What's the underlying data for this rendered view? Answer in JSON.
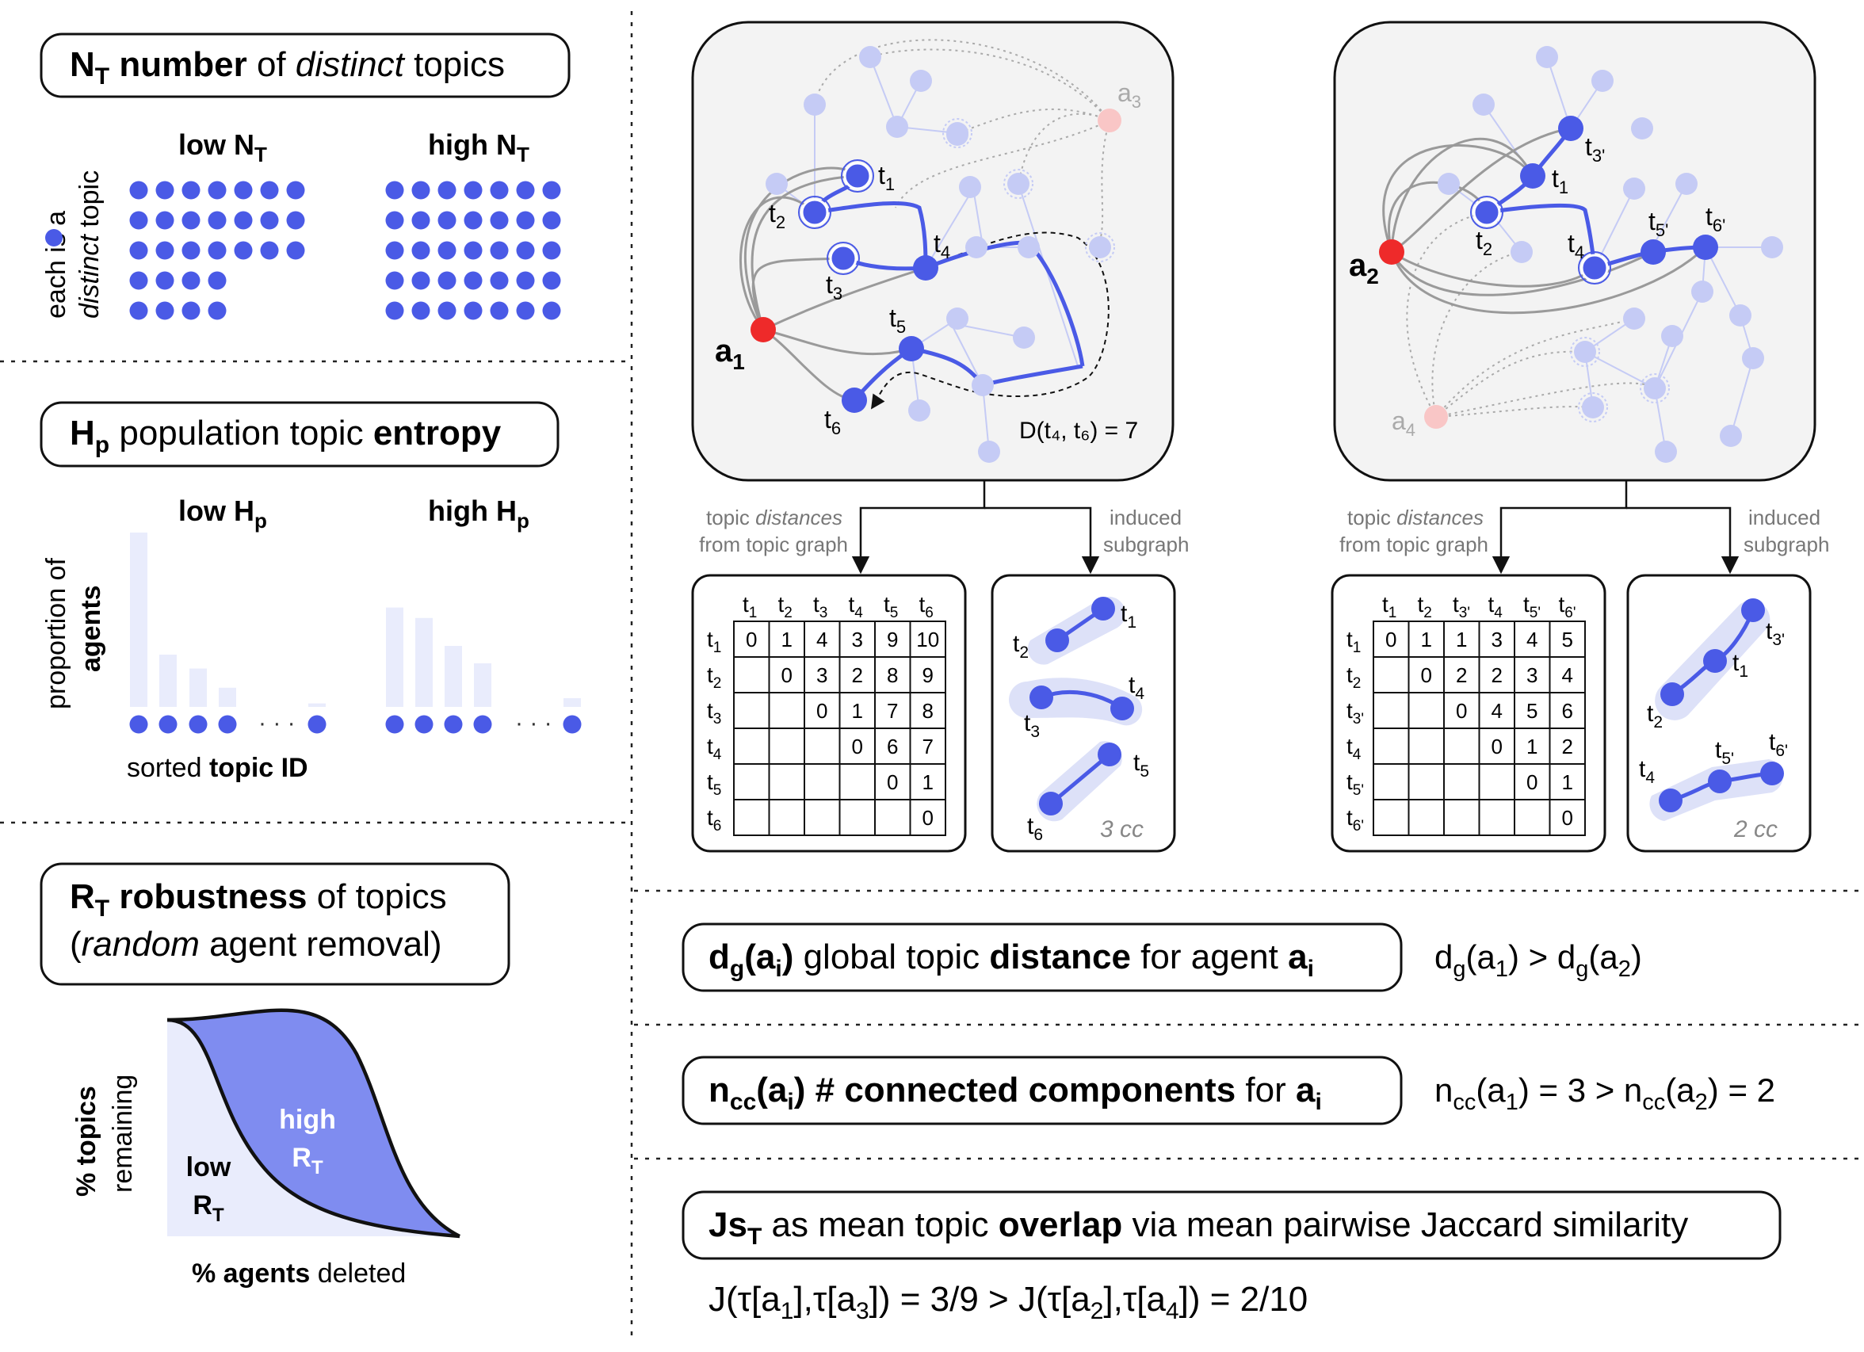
{
  "colors": {
    "node": "#4a5ae6",
    "node_light": "#c5cbf5",
    "agent": "#ee2a2a",
    "agent_light": "#f9c6c6",
    "edge_gray": "#9a9a9a",
    "hull": "#dde1f8",
    "curve_fill": "#7f8cf0",
    "curve_bg": "#e9ecfc"
  },
  "nt": {
    "symbol": "N",
    "sub": "T",
    "title_bold": "number",
    "title_of": "of",
    "title_italic": "distinct",
    "title_rest": "topics",
    "side_each": "each",
    "side_is": "is a",
    "side_distinct": "distinct",
    "side_topic": "topic",
    "low_label": "low N",
    "high_label": "high N",
    "label_sub": "T",
    "low_rows": [
      7,
      7,
      7,
      4,
      4
    ],
    "high_rows": [
      7,
      7,
      7,
      7,
      7
    ]
  },
  "hp": {
    "symbol": "H",
    "sub": "p",
    "title_plain": "population topic",
    "title_bold": "entropy",
    "low_label": "low H",
    "high_label": "high H",
    "label_sub": "p",
    "ylabel_top": "proportion of",
    "ylabel_bold": "agents",
    "xlabel_plain": "sorted",
    "xlabel_bold": "topic ID",
    "dots": "· · ·",
    "low_bars": [
      1.0,
      0.3,
      0.22,
      0.11,
      0.02
    ],
    "high_bars": [
      0.57,
      0.51,
      0.35,
      0.25,
      0.05
    ]
  },
  "rt": {
    "symbol": "R",
    "sub": "T",
    "title_bold": "robustness",
    "title_rest": "of topics",
    "line2_open": "(",
    "line2_italic": "random",
    "line2_rest": "agent removal)",
    "ylabel_bold": "% topics",
    "ylabel_rest": "remaining",
    "xlabel_bold": "% agents",
    "xlabel_rest": "deleted",
    "high": "high",
    "low": "low",
    "r_letter": "R",
    "r_sub": "T"
  },
  "graph1": {
    "agent": "a",
    "agent_sub": "1",
    "other_agent": "a",
    "other_sub": "3",
    "topic_letter": "t",
    "subs": [
      "1",
      "2",
      "3",
      "4",
      "5",
      "6"
    ],
    "distance_label": "D(t₄, t₆) = 7"
  },
  "graph2": {
    "agent": "a",
    "agent_sub": "2",
    "other_agent": "a",
    "other_sub": "4",
    "topic_letter": "t",
    "subs": [
      "3'",
      "1",
      "2",
      "4",
      "5'",
      "6'"
    ]
  },
  "branch": {
    "left_line1_plain": "topic",
    "left_line1_italic": "distances",
    "left_line2": "from topic graph",
    "right_line1": "induced",
    "right_line2": "subgraph"
  },
  "matrix1": {
    "letter": "t",
    "subs": [
      "1",
      "2",
      "3",
      "4",
      "5",
      "6"
    ],
    "rows": [
      [
        "0",
        "1",
        "4",
        "3",
        "9",
        "10"
      ],
      [
        "",
        "0",
        "3",
        "2",
        "8",
        "9"
      ],
      [
        "",
        "",
        "0",
        "1",
        "7",
        "8"
      ],
      [
        "",
        "",
        "",
        "0",
        "6",
        "7"
      ],
      [
        "",
        "",
        "",
        "",
        "0",
        "1"
      ],
      [
        "",
        "",
        "",
        "",
        "",
        "0"
      ]
    ]
  },
  "matrix2": {
    "letter": "t",
    "subs": [
      "1",
      "2",
      "3'",
      "4",
      "5'",
      "6'"
    ],
    "rows": [
      [
        "0",
        "1",
        "1",
        "3",
        "4",
        "5"
      ],
      [
        "",
        "0",
        "2",
        "2",
        "3",
        "4"
      ],
      [
        "",
        "",
        "0",
        "4",
        "5",
        "6"
      ],
      [
        "",
        "",
        "",
        "0",
        "1",
        "2"
      ],
      [
        "",
        "",
        "",
        "",
        "0",
        "1"
      ],
      [
        "",
        "",
        "",
        "",
        "",
        "0"
      ]
    ]
  },
  "sub1": {
    "cc": "3 cc",
    "letter": "t",
    "labels": [
      "1",
      "2",
      "4",
      "3",
      "5",
      "6"
    ]
  },
  "sub2": {
    "cc": "2 cc",
    "letter": "t",
    "labels": [
      "3'",
      "1",
      "2",
      "4",
      "5'",
      "6'"
    ]
  },
  "dg": {
    "sym": "d",
    "sym_sub": "g",
    "arg": "(a",
    "arg_sub": "i",
    "arg_close": ")",
    "text_plain": "global topic",
    "text_bold": "distance",
    "text_for": "for agent",
    "agent": "a",
    "agent_sub": "i",
    "ineq": [
      "d",
      "g",
      "(a",
      "1",
      ") > d",
      "g",
      "(a",
      "2",
      ")"
    ]
  },
  "ncc": {
    "sym": "n",
    "sym_sub": "cc",
    "arg": "(a",
    "arg_sub": "i",
    "arg_close": ")",
    "text_bold": "# connected components",
    "text_for": "for",
    "agent": "a",
    "agent_sub": "i",
    "ineq": [
      "n",
      "cc",
      "(a",
      "1",
      ") = 3 > n",
      "cc",
      "(a",
      "2",
      ") = 2"
    ]
  },
  "js": {
    "sym": "Js",
    "sym_sub": "T",
    "text_plain": "as mean topic",
    "text_bold": "overlap",
    "text_rest": "via mean pairwise Jaccard similarity",
    "ineq": [
      "J(τ[a",
      "1",
      "],τ[a",
      "3",
      "]) = 3/9 > J(τ[a",
      "2",
      "],τ[a",
      "4",
      "]) = 2/10"
    ]
  }
}
